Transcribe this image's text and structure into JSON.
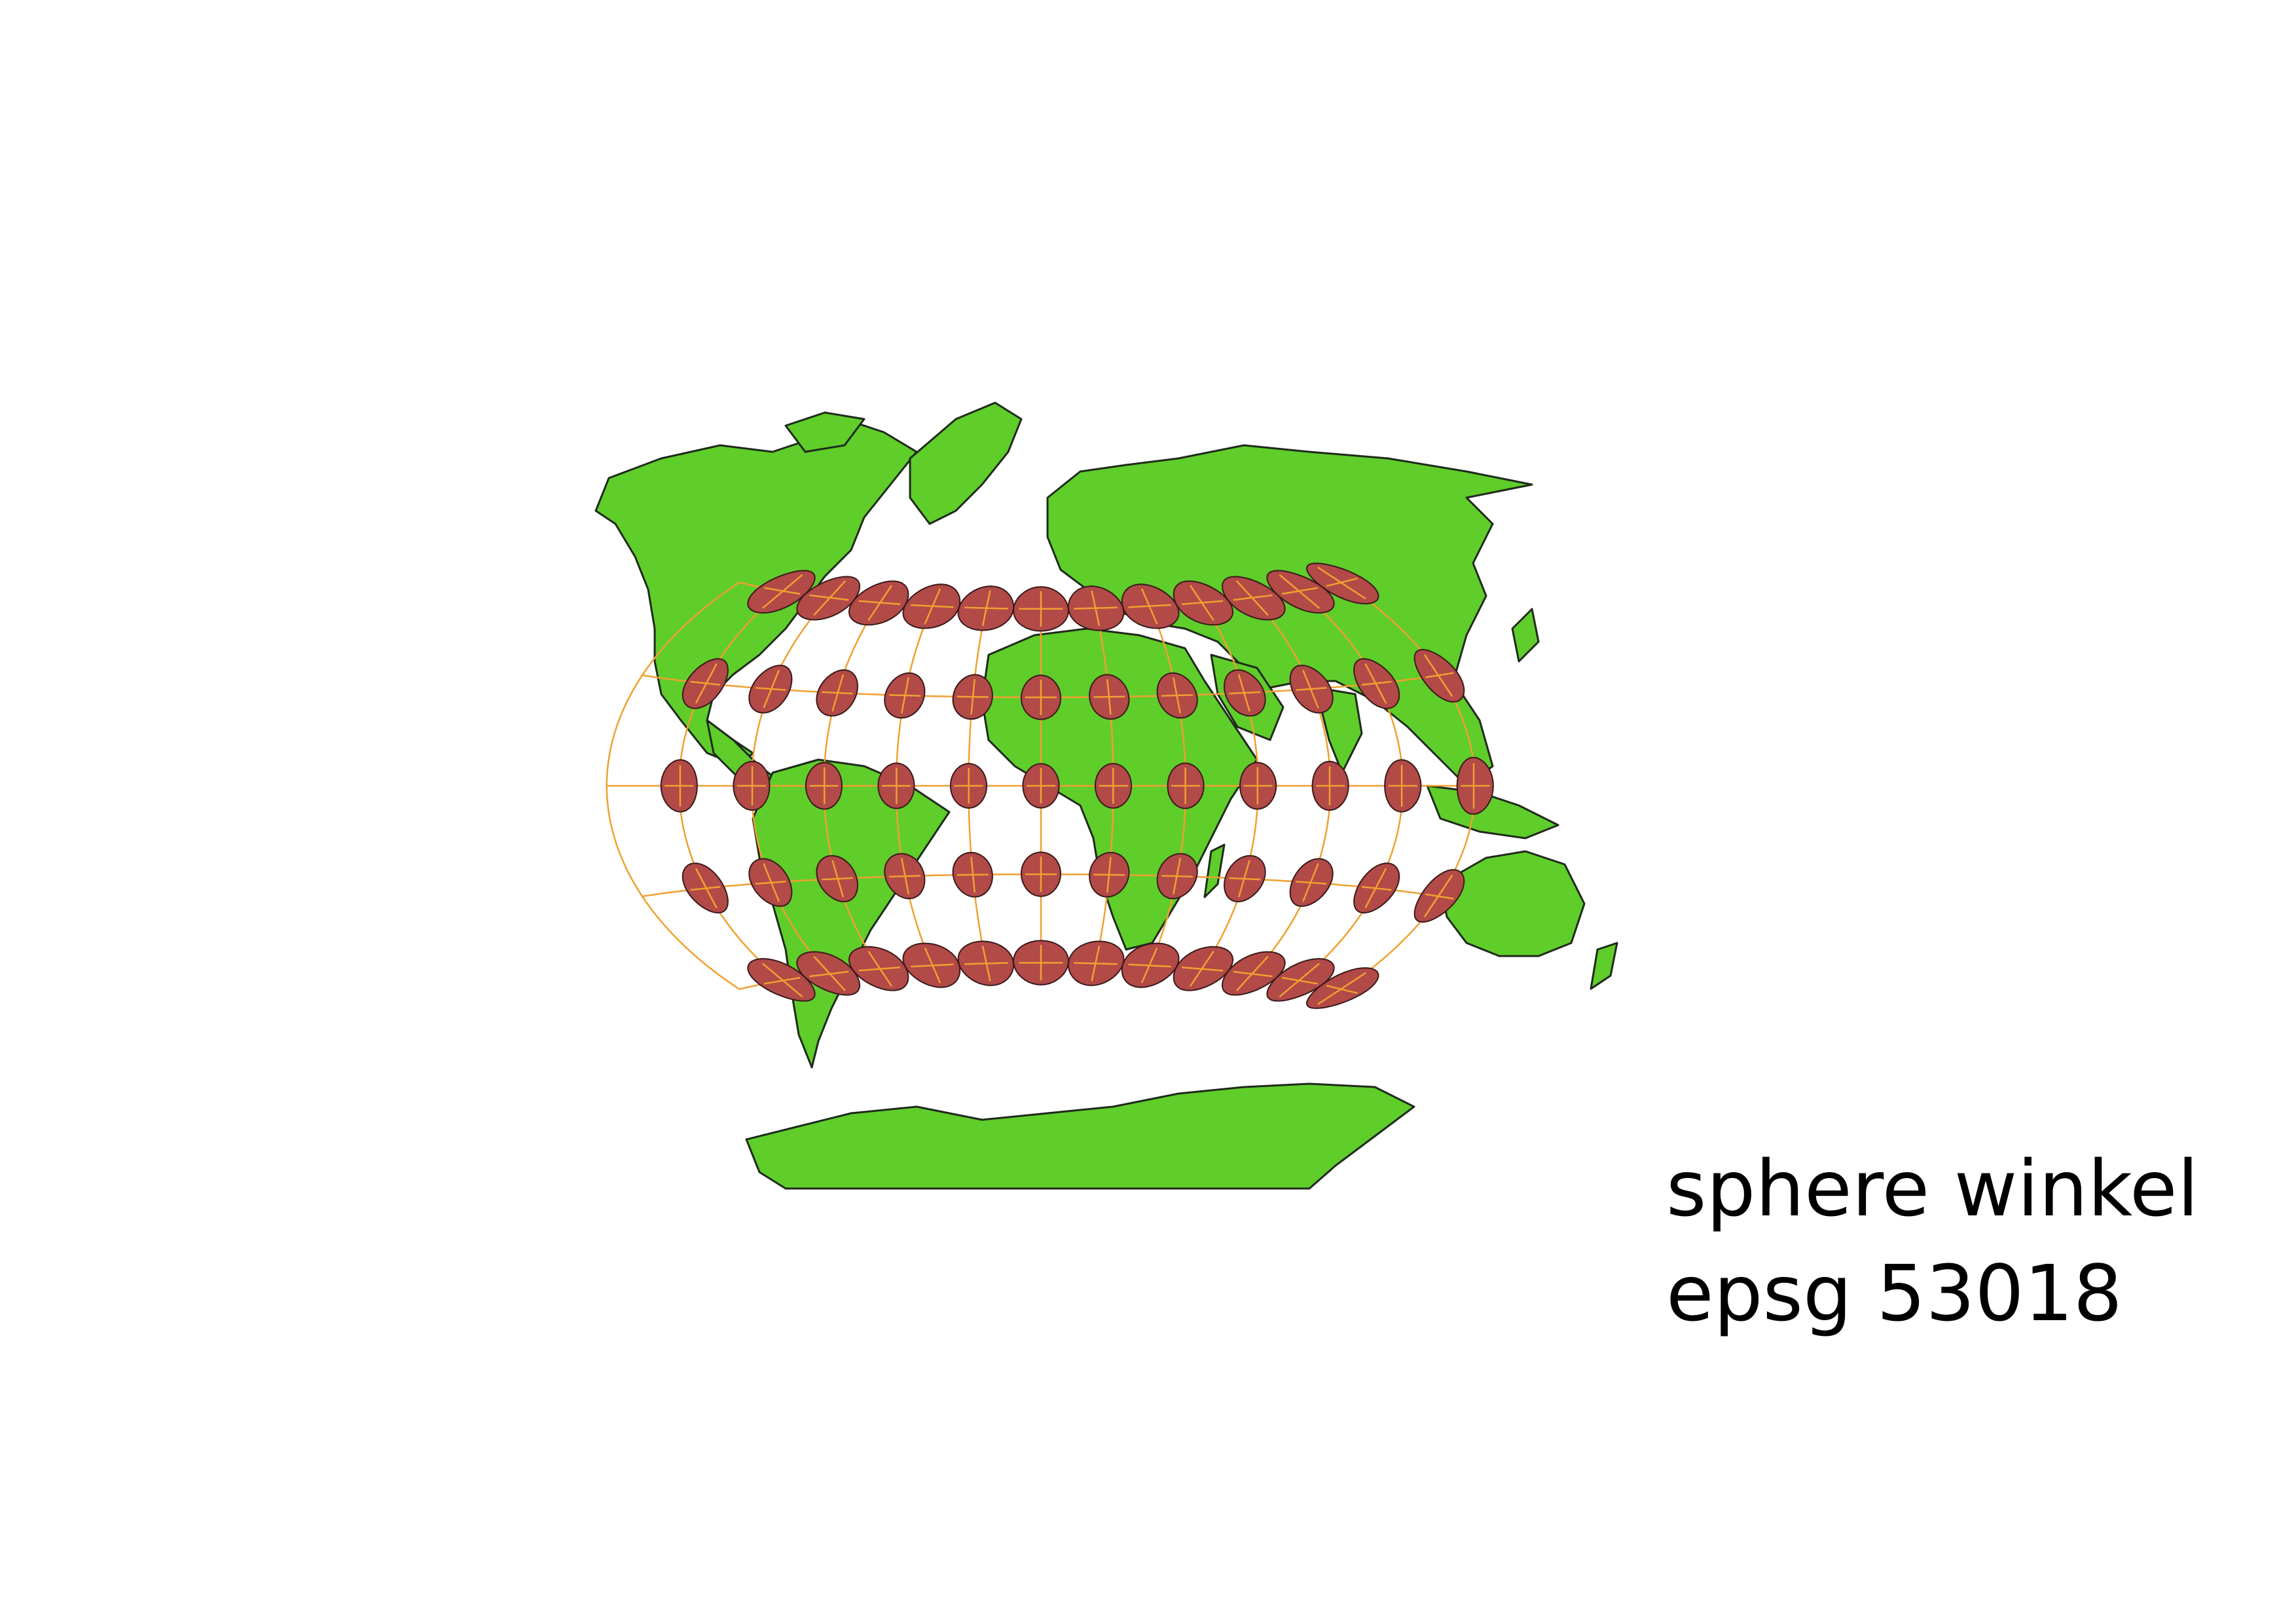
{
  "caption": {
    "line1": "sphere winkel",
    "line2": "epsg 53018"
  },
  "map": {
    "projection": "winkel",
    "epsg": "53018",
    "colors": {
      "land": "#5fcd2a",
      "coastline": "#1f2a1a",
      "graticule": "#f0a030",
      "indicatrix": "#b24a48",
      "indicatrix_stroke": "#3a1a1a",
      "background": "#ffffff"
    },
    "graticule": {
      "longitudes": [
        -180,
        -150,
        -120,
        -90,
        -60,
        -30,
        0,
        30,
        60,
        90,
        120,
        150,
        180
      ],
      "latitudes": [
        -60,
        -30,
        0,
        30,
        60
      ]
    },
    "indicatrix_grid": {
      "longitudes": [
        -150,
        -120,
        -90,
        -60,
        -30,
        0,
        30,
        60,
        90,
        120,
        150,
        180
      ],
      "latitudes": [
        -60,
        -30,
        0,
        30,
        60
      ]
    }
  }
}
